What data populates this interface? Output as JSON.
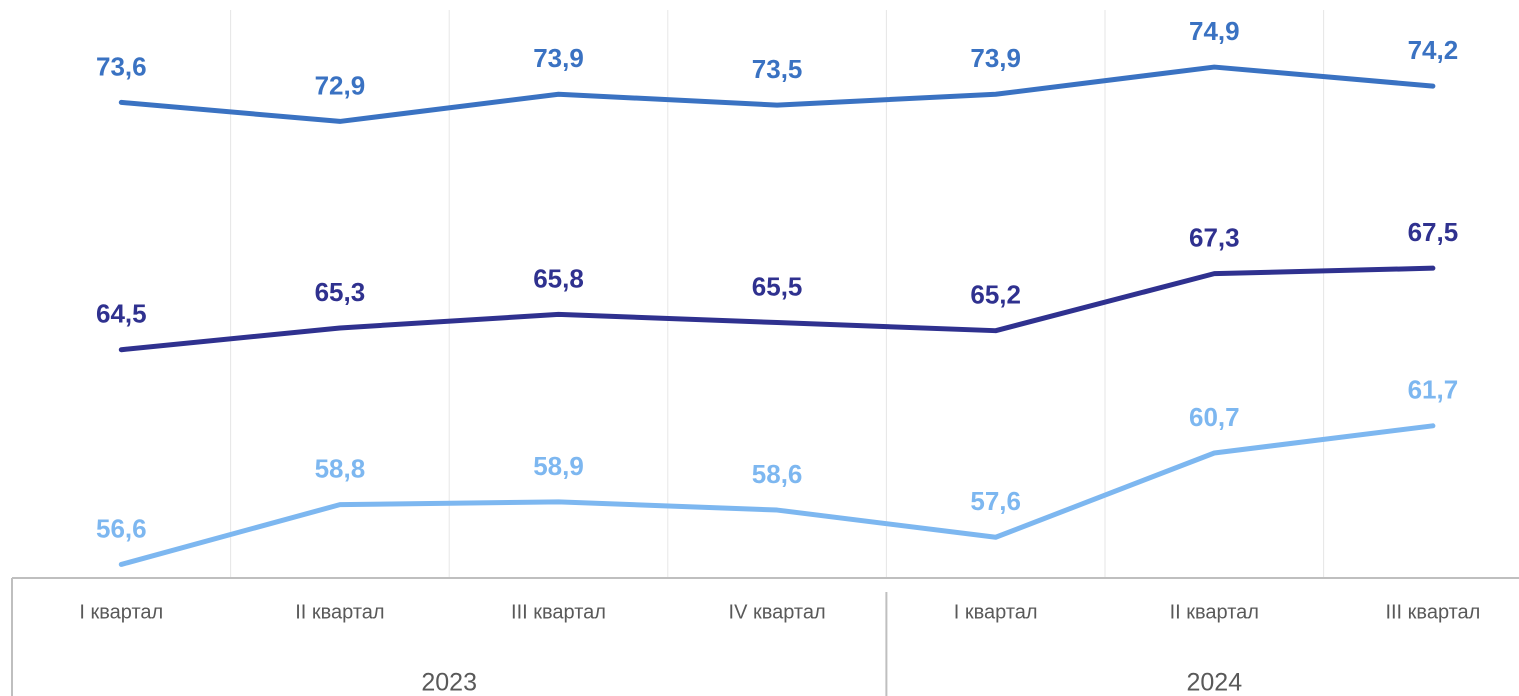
{
  "chart_data": {
    "type": "line",
    "categories": [
      "I квартал",
      "II квартал",
      "III квартал",
      "IV квартал",
      "I квартал",
      "II квартал",
      "III квартал"
    ],
    "groups": [
      {
        "label": "2023",
        "count": 4
      },
      {
        "label": "2024",
        "count": 3
      }
    ],
    "series": [
      {
        "color": "#3a72c2",
        "values": [
          73.6,
          72.9,
          73.9,
          73.5,
          73.9,
          74.9,
          74.2
        ],
        "value_labels": [
          "73,6",
          "72,9",
          "73,9",
          "73,5",
          "73,9",
          "74,9",
          "74,2"
        ]
      },
      {
        "color": "#2f318f",
        "values": [
          64.5,
          65.3,
          65.8,
          65.5,
          65.2,
          67.3,
          67.5
        ],
        "value_labels": [
          "64,5",
          "65,3",
          "65,8",
          "65,5",
          "65,2",
          "67,3",
          "67,5"
        ]
      },
      {
        "color": "#7db7f0",
        "values": [
          56.6,
          58.8,
          58.9,
          58.6,
          57.6,
          60.7,
          61.7
        ],
        "value_labels": [
          "56,6",
          "58,8",
          "58,9",
          "58,6",
          "57,6",
          "60,7",
          "61,7"
        ]
      }
    ],
    "ylim": [
      56.1,
      77
    ],
    "grid": true
  }
}
